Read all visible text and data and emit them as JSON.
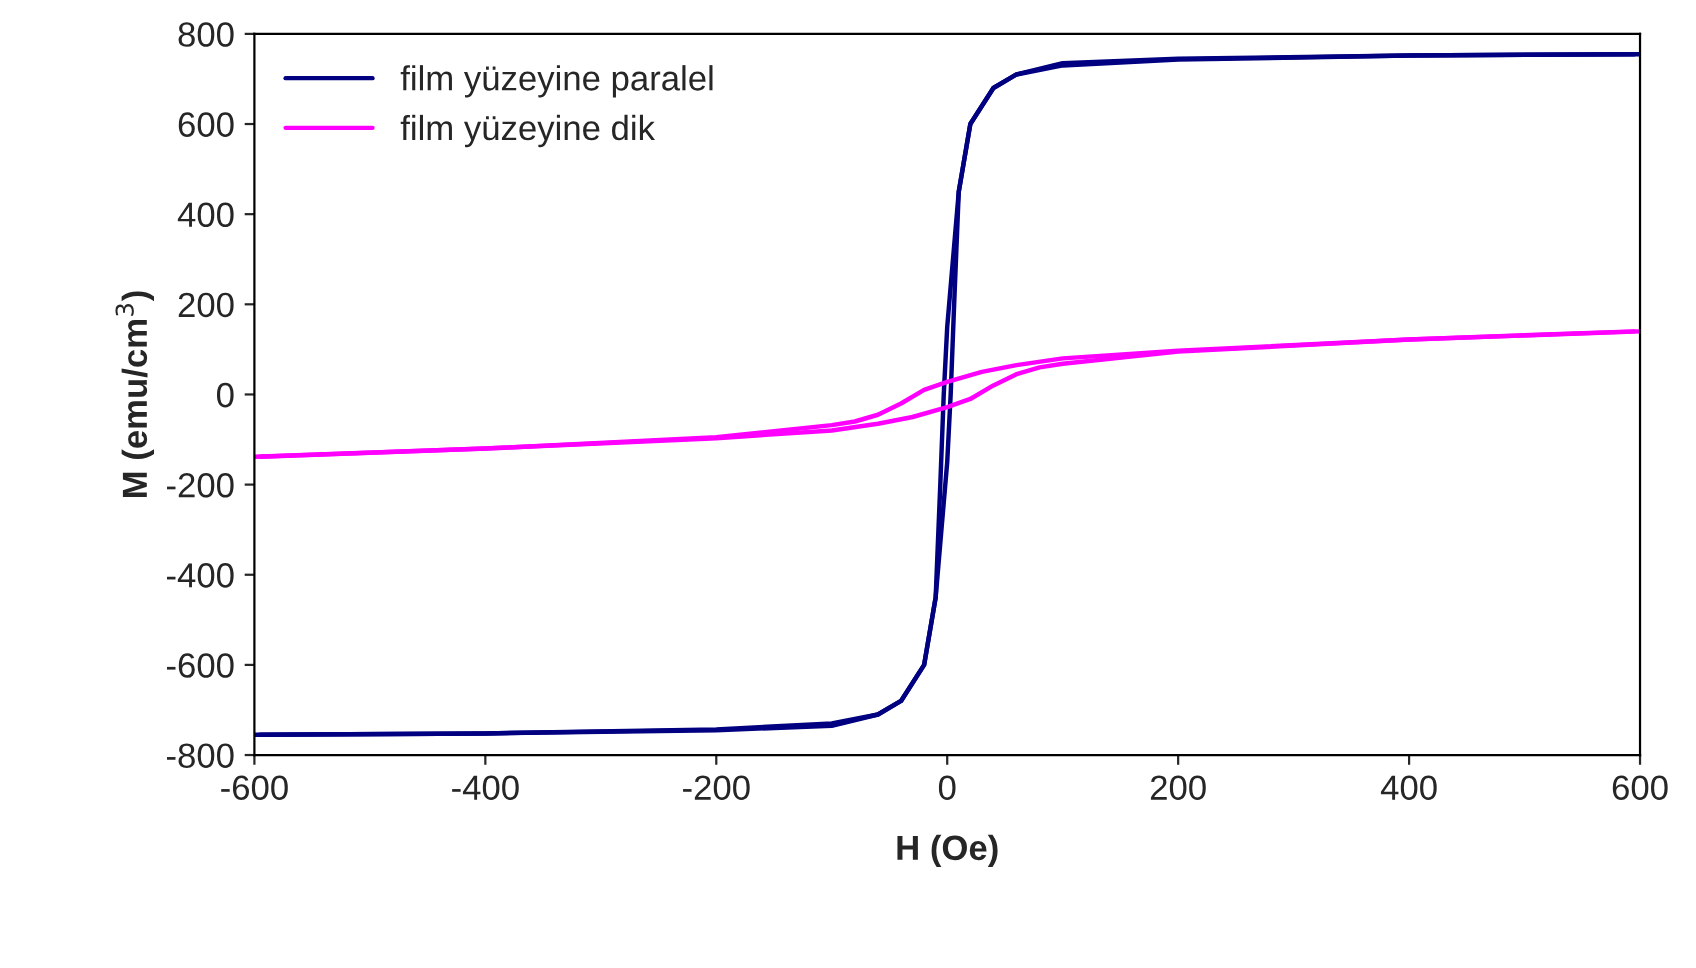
{
  "chart_data": {
    "type": "line",
    "xlabel": "H (Oe)",
    "ylabel": "M (emu/cm$^{3}$)",
    "xlim": [
      -600,
      600
    ],
    "xticks": [
      -600,
      -400,
      -200,
      0,
      200,
      400,
      600
    ],
    "ylim": [
      -800,
      800
    ],
    "yticks": [
      -800,
      -600,
      -400,
      -200,
      0,
      200,
      400,
      600,
      800
    ],
    "grid": false,
    "legend": "top left",
    "marker": "none",
    "line_style": "solid",
    "series": [
      {
        "name": "film yüzeyine paralel",
        "color": "#000080",
        "x": [
          -600,
          -400,
          -200,
          -100,
          -60,
          -40,
          -20,
          -10,
          -6,
          -3,
          0,
          5,
          10,
          20,
          40,
          60,
          100,
          200,
          400,
          600
        ],
        "values": [
          -755,
          -752,
          -745,
          -735,
          -710,
          -680,
          -600,
          -450,
          -200,
          0,
          150,
          300,
          450,
          600,
          680,
          710,
          730,
          743,
          752,
          755
        ]
      },
      {
        "color": "#000080",
        "x": [
          -595,
          -400,
          -200,
          -100,
          -60,
          -40,
          -20,
          -10,
          -5,
          0,
          3,
          6,
          10,
          20,
          40,
          60,
          100,
          200,
          400,
          595
        ],
        "values": [
          -755,
          -752,
          -743,
          -730,
          -710,
          -680,
          -600,
          -450,
          -300,
          -150,
          0,
          200,
          450,
          600,
          680,
          710,
          735,
          745,
          752,
          755
        ]
      },
      {
        "name": "film yüzeyine dik",
        "color": "#ff00ff",
        "x": [
          -600,
          -400,
          -200,
          -100,
          -80,
          -60,
          -40,
          -20,
          0,
          30,
          60,
          100,
          200,
          400,
          600
        ],
        "values": [
          -138,
          -120,
          -95,
          -68,
          -60,
          -45,
          -20,
          10,
          28,
          50,
          65,
          80,
          97,
          122,
          140
        ]
      },
      {
        "color": "#ff00ff",
        "x": [
          -595,
          -400,
          -200,
          -100,
          -60,
          -30,
          0,
          20,
          40,
          60,
          80,
          100,
          200,
          400,
          595
        ],
        "values": [
          -138,
          -120,
          -97,
          -80,
          -65,
          -50,
          -28,
          -10,
          20,
          45,
          60,
          68,
          95,
          122,
          140
        ]
      }
    ]
  }
}
